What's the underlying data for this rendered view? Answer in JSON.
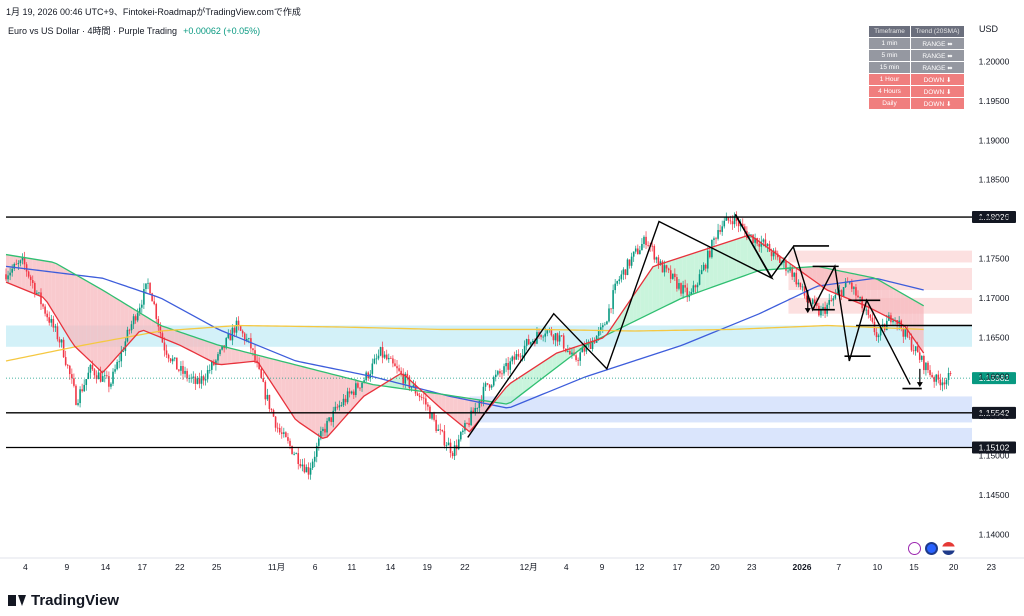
{
  "header": {
    "created": "1月 19, 2026 00:46 UTC+9、Fintokei-RoadmapがTradingView.comで作成",
    "symbol": "Euro vs US Dollar · 4時間 · Purple Trading",
    "change": "+0.00062 (+0.05%)",
    "currency": "USD"
  },
  "trend_table": {
    "headers": [
      "Timeframe",
      "Trend (20SMA)"
    ],
    "rows": [
      {
        "tf": "1 min",
        "trend": "RANGE ⬌",
        "state": "range"
      },
      {
        "tf": "5 min",
        "trend": "RANGE ⬌",
        "state": "range"
      },
      {
        "tf": "15 min",
        "trend": "RANGE ⬌",
        "state": "range"
      },
      {
        "tf": "1 Hour",
        "trend": "DOWN ⬇",
        "state": "down"
      },
      {
        "tf": "4 Hours",
        "trend": "DOWN ⬇",
        "state": "down"
      },
      {
        "tf": "Daily",
        "trend": "DOWN ⬇",
        "state": "down"
      }
    ]
  },
  "branding": {
    "logo_text": "TradingView"
  },
  "colors": {
    "up": "#089981",
    "down": "#f23645",
    "sma_blue": "#3d5ddb",
    "sma_green": "#2fbf71",
    "sma_yellow": "#f5c842",
    "sma_red": "#e8313b",
    "zone_cyan": "#c8eef6",
    "zone_blue": "#d3e1fb",
    "zone_pink": "#fbdada"
  },
  "chart_data": {
    "type": "candlestick",
    "ylim": [
      1.137,
      1.2045
    ],
    "y_ticks": [
      "1.20000",
      "1.19500",
      "1.19000",
      "1.18500",
      "1.18000",
      "1.17500",
      "1.17000",
      "1.16500",
      "1.16000",
      "1.15500",
      "1.15000",
      "1.14500",
      "1.14000"
    ],
    "x_ticks": [
      {
        "label": "4",
        "t": 0.02
      },
      {
        "label": "9",
        "t": 0.063
      },
      {
        "label": "14",
        "t": 0.103
      },
      {
        "label": "17",
        "t": 0.141
      },
      {
        "label": "22",
        "t": 0.18
      },
      {
        "label": "25",
        "t": 0.218
      },
      {
        "label": "11月",
        "t": 0.28
      },
      {
        "label": "6",
        "t": 0.32
      },
      {
        "label": "11",
        "t": 0.358
      },
      {
        "label": "14",
        "t": 0.398
      },
      {
        "label": "19",
        "t": 0.436
      },
      {
        "label": "22",
        "t": 0.475
      },
      {
        "label": "12月",
        "t": 0.541
      },
      {
        "label": "4",
        "t": 0.58
      },
      {
        "label": "9",
        "t": 0.617
      },
      {
        "label": "12",
        "t": 0.656
      },
      {
        "label": "17",
        "t": 0.695
      },
      {
        "label": "20",
        "t": 0.734
      },
      {
        "label": "23",
        "t": 0.772
      },
      {
        "label": "2026",
        "t": 0.824
      },
      {
        "label": "7",
        "t": 0.862
      },
      {
        "label": "10",
        "t": 0.902
      },
      {
        "label": "15",
        "t": 0.94
      },
      {
        "label": "20",
        "t": 0.981
      },
      {
        "label": "23",
        "t": 1.02
      }
    ],
    "price_keypoints": [
      [
        0.0,
        1.173
      ],
      [
        0.02,
        1.1745
      ],
      [
        0.04,
        1.169
      ],
      [
        0.06,
        1.164
      ],
      [
        0.075,
        1.157
      ],
      [
        0.09,
        1.161
      ],
      [
        0.11,
        1.159
      ],
      [
        0.13,
        1.166
      ],
      [
        0.15,
        1.172
      ],
      [
        0.165,
        1.164
      ],
      [
        0.18,
        1.161
      ],
      [
        0.2,
        1.159
      ],
      [
        0.22,
        1.162
      ],
      [
        0.24,
        1.1665
      ],
      [
        0.255,
        1.164
      ],
      [
        0.27,
        1.158
      ],
      [
        0.285,
        1.153
      ],
      [
        0.3,
        1.1505
      ],
      [
        0.315,
        1.148
      ],
      [
        0.33,
        1.153
      ],
      [
        0.345,
        1.156
      ],
      [
        0.36,
        1.158
      ],
      [
        0.375,
        1.16
      ],
      [
        0.39,
        1.163
      ],
      [
        0.405,
        1.161
      ],
      [
        0.42,
        1.159
      ],
      [
        0.435,
        1.157
      ],
      [
        0.45,
        1.153
      ],
      [
        0.465,
        1.1505
      ],
      [
        0.48,
        1.154
      ],
      [
        0.5,
        1.159
      ],
      [
        0.52,
        1.161
      ],
      [
        0.54,
        1.164
      ],
      [
        0.56,
        1.166
      ],
      [
        0.575,
        1.165
      ],
      [
        0.59,
        1.162
      ],
      [
        0.605,
        1.164
      ],
      [
        0.62,
        1.166
      ],
      [
        0.635,
        1.172
      ],
      [
        0.65,
        1.175
      ],
      [
        0.665,
        1.1775
      ],
      [
        0.68,
        1.174
      ],
      [
        0.695,
        1.172
      ],
      [
        0.71,
        1.17
      ],
      [
        0.725,
        1.174
      ],
      [
        0.74,
        1.179
      ],
      [
        0.755,
        1.1802
      ],
      [
        0.77,
        1.178
      ],
      [
        0.785,
        1.177
      ],
      [
        0.8,
        1.175
      ],
      [
        0.815,
        1.1735
      ],
      [
        0.83,
        1.17
      ],
      [
        0.845,
        1.168
      ],
      [
        0.86,
        1.17
      ],
      [
        0.875,
        1.172
      ],
      [
        0.89,
        1.1685
      ],
      [
        0.905,
        1.165
      ],
      [
        0.92,
        1.168
      ],
      [
        0.935,
        1.165
      ],
      [
        0.95,
        1.162
      ],
      [
        0.965,
        1.1595
      ],
      [
        0.98,
        1.1598
      ]
    ],
    "current_price": "1.15982",
    "price_label_right": "1.15982",
    "horizontal_levels": [
      {
        "value": 1.18026,
        "label": "1.18026"
      },
      {
        "value": 1.15542,
        "label": "1.15542"
      },
      {
        "value": 1.15102,
        "label": "1.15102"
      }
    ],
    "zones": [
      {
        "y_top": 1.1665,
        "y_bot": 1.1638,
        "x0": 0.0,
        "x1": 1.0,
        "color": "cyan"
      },
      {
        "y_top": 1.1575,
        "y_bot": 1.1542,
        "x0": 0.48,
        "x1": 1.0,
        "color": "blue"
      },
      {
        "y_top": 1.1535,
        "y_bot": 1.151,
        "x0": 0.48,
        "x1": 1.0,
        "color": "blue"
      },
      {
        "y_top": 1.176,
        "y_bot": 1.1745,
        "x0": 0.81,
        "x1": 1.0,
        "color": "pink"
      },
      {
        "y_top": 1.1738,
        "y_bot": 1.171,
        "x0": 0.81,
        "x1": 1.0,
        "color": "pink"
      },
      {
        "y_top": 1.17,
        "y_bot": 1.168,
        "x0": 0.81,
        "x1": 1.0,
        "color": "pink"
      }
    ],
    "series": [
      {
        "kind": "sma",
        "color": "sma_blue",
        "points": [
          [
            0.0,
            1.174
          ],
          [
            0.1,
            1.1725
          ],
          [
            0.16,
            1.17
          ],
          [
            0.22,
            1.166
          ],
          [
            0.3,
            1.162
          ],
          [
            0.38,
            1.16
          ],
          [
            0.46,
            1.1575
          ],
          [
            0.52,
            1.156
          ],
          [
            0.6,
            1.16
          ],
          [
            0.7,
            1.164
          ],
          [
            0.78,
            1.168
          ],
          [
            0.84,
            1.1715
          ],
          [
            0.9,
            1.1725
          ],
          [
            0.95,
            1.171
          ]
        ]
      },
      {
        "kind": "sma",
        "color": "sma_green",
        "points": [
          [
            0.0,
            1.1755
          ],
          [
            0.05,
            1.1745
          ],
          [
            0.1,
            1.171
          ],
          [
            0.16,
            1.1665
          ],
          [
            0.22,
            1.164
          ],
          [
            0.3,
            1.1615
          ],
          [
            0.38,
            1.159
          ],
          [
            0.45,
            1.1578
          ],
          [
            0.52,
            1.1565
          ],
          [
            0.6,
            1.164
          ],
          [
            0.7,
            1.17
          ],
          [
            0.78,
            1.1735
          ],
          [
            0.84,
            1.174
          ],
          [
            0.9,
            1.1725
          ],
          [
            0.95,
            1.169
          ]
        ]
      },
      {
        "kind": "sma",
        "color": "sma_yellow",
        "points": [
          [
            0.0,
            1.162
          ],
          [
            0.08,
            1.164
          ],
          [
            0.16,
            1.1658
          ],
          [
            0.24,
            1.1665
          ],
          [
            0.35,
            1.1663
          ],
          [
            0.45,
            1.166
          ],
          [
            0.55,
            1.166
          ],
          [
            0.65,
            1.1658
          ],
          [
            0.75,
            1.166
          ],
          [
            0.85,
            1.1665
          ],
          [
            0.95,
            1.166
          ]
        ]
      },
      {
        "kind": "sma",
        "color": "sma_red",
        "points": [
          [
            0.0,
            1.172
          ],
          [
            0.04,
            1.17
          ],
          [
            0.07,
            1.164
          ],
          [
            0.1,
            1.1605
          ],
          [
            0.14,
            1.166
          ],
          [
            0.18,
            1.164
          ],
          [
            0.22,
            1.1615
          ],
          [
            0.26,
            1.162
          ],
          [
            0.3,
            1.1545
          ],
          [
            0.33,
            1.152
          ],
          [
            0.37,
            1.1575
          ],
          [
            0.41,
            1.1605
          ],
          [
            0.45,
            1.156
          ],
          [
            0.48,
            1.153
          ],
          [
            0.52,
            1.159
          ],
          [
            0.57,
            1.163
          ],
          [
            0.62,
            1.165
          ],
          [
            0.67,
            1.174
          ],
          [
            0.72,
            1.176
          ],
          [
            0.77,
            1.178
          ],
          [
            0.81,
            1.1745
          ],
          [
            0.85,
            1.171
          ],
          [
            0.89,
            1.169
          ],
          [
            0.93,
            1.1665
          ],
          [
            0.95,
            1.163
          ]
        ]
      }
    ],
    "zigzags": [
      [
        [
          0.478,
          1.1523
        ],
        [
          0.567,
          1.168
        ],
        [
          0.622,
          1.161
        ],
        [
          0.676,
          1.1797
        ],
        [
          0.793,
          1.1725
        ],
        [
          0.755,
          1.1806
        ]
      ],
      [
        [
          0.755,
          1.1806
        ],
        [
          0.792,
          1.1726
        ],
        [
          0.815,
          1.1765
        ],
        [
          0.835,
          1.1685
        ],
        [
          0.858,
          1.174
        ],
        [
          0.873,
          1.162
        ],
        [
          0.891,
          1.1697
        ],
        [
          0.936,
          1.159
        ]
      ]
    ],
    "horizontal_segments": [
      [
        0.815,
        0.852,
        1.1766
      ],
      [
        0.835,
        0.862,
        1.174
      ],
      [
        0.872,
        0.905,
        1.1697
      ],
      [
        0.868,
        0.895,
        1.1626
      ],
      [
        0.835,
        0.858,
        1.1685
      ],
      [
        0.88,
        1.0,
        1.1665
      ],
      [
        0.928,
        0.948,
        1.1585
      ]
    ],
    "arrows": [
      {
        "x": 0.83,
        "from": 1.171,
        "to": 1.1682
      },
      {
        "x": 0.946,
        "from": 1.161,
        "to": 1.1588
      }
    ]
  }
}
